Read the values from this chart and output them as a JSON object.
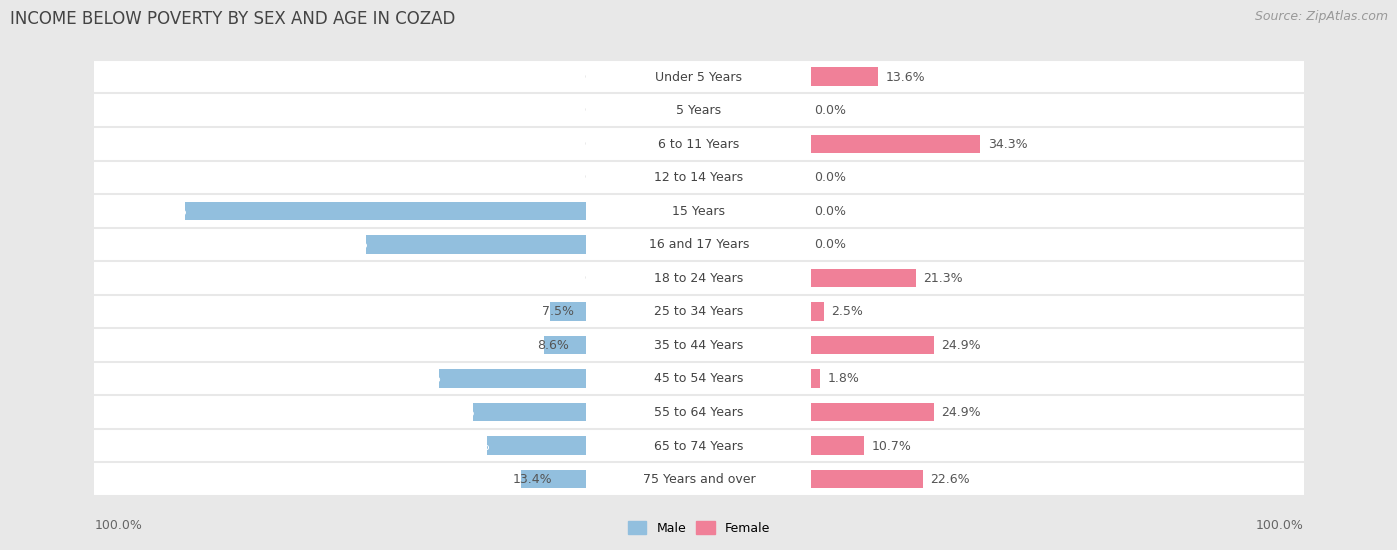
{
  "title": "INCOME BELOW POVERTY BY SEX AND AGE IN COZAD",
  "source": "Source: ZipAtlas.com",
  "categories": [
    "Under 5 Years",
    "5 Years",
    "6 to 11 Years",
    "12 to 14 Years",
    "15 Years",
    "16 and 17 Years",
    "18 to 24 Years",
    "25 to 34 Years",
    "35 to 44 Years",
    "45 to 54 Years",
    "55 to 64 Years",
    "65 to 74 Years",
    "75 Years and over"
  ],
  "male_values": [
    0.0,
    0.0,
    0.0,
    0.0,
    81.6,
    44.8,
    0.0,
    7.5,
    8.6,
    30.0,
    23.1,
    20.2,
    13.4
  ],
  "female_values": [
    13.6,
    0.0,
    34.3,
    0.0,
    0.0,
    0.0,
    21.3,
    2.5,
    24.9,
    1.8,
    24.9,
    10.7,
    22.6
  ],
  "male_color": "#92bfde",
  "female_color": "#f08098",
  "male_label": "Male",
  "female_label": "Female",
  "background_color": "#e8e8e8",
  "row_bg_color": "#ffffff",
  "row_alt_color": "#efefef",
  "axis_limit": 100.0,
  "title_fontsize": 12,
  "value_fontsize": 9,
  "category_fontsize": 9,
  "source_fontsize": 9,
  "bar_height": 0.55,
  "legend_fontsize": 9
}
